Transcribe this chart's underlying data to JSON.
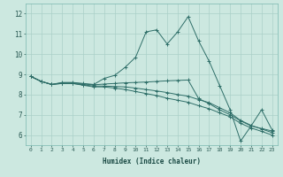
{
  "xlabel": "Humidex (Indice chaleur)",
  "background_color": "#cce8e0",
  "grid_color": "#aad0c8",
  "line_color": "#2e6e68",
  "xlim": [
    -0.5,
    23.5
  ],
  "ylim": [
    5.5,
    12.5
  ],
  "xticks": [
    0,
    1,
    2,
    3,
    4,
    5,
    6,
    7,
    8,
    9,
    10,
    11,
    12,
    13,
    14,
    15,
    16,
    17,
    18,
    19,
    20,
    21,
    22,
    23
  ],
  "yticks": [
    6,
    7,
    8,
    9,
    10,
    11,
    12
  ],
  "line1_x": [
    0,
    1,
    2,
    3,
    4,
    5,
    6,
    7,
    8,
    9,
    10,
    11,
    12,
    13,
    14,
    15,
    16,
    17,
    18,
    19,
    20,
    21,
    22,
    23
  ],
  "line1_y": [
    8.9,
    8.65,
    8.5,
    8.6,
    8.6,
    8.55,
    8.5,
    8.8,
    8.95,
    9.35,
    9.85,
    11.1,
    11.2,
    10.5,
    11.1,
    11.85,
    10.65,
    9.65,
    8.45,
    7.25,
    5.7,
    6.45,
    7.25,
    6.25
  ],
  "line2_x": [
    0,
    1,
    2,
    3,
    4,
    5,
    6,
    7,
    8,
    9,
    10,
    11,
    12,
    13,
    14,
    15,
    16,
    17,
    18,
    19,
    20,
    21,
    22,
    23
  ],
  "line2_y": [
    8.9,
    8.65,
    8.5,
    8.58,
    8.58,
    8.52,
    8.48,
    8.52,
    8.55,
    8.58,
    8.6,
    8.62,
    8.65,
    8.68,
    8.7,
    8.72,
    7.8,
    7.55,
    7.25,
    7.0,
    6.7,
    6.45,
    6.32,
    6.2
  ],
  "line3_x": [
    0,
    1,
    2,
    3,
    4,
    5,
    6,
    7,
    8,
    9,
    10,
    11,
    12,
    13,
    14,
    15,
    16,
    17,
    18,
    19,
    20,
    21,
    22,
    23
  ],
  "line3_y": [
    8.9,
    8.65,
    8.5,
    8.55,
    8.55,
    8.48,
    8.42,
    8.42,
    8.4,
    8.38,
    8.32,
    8.25,
    8.18,
    8.1,
    8.0,
    7.92,
    7.75,
    7.6,
    7.35,
    7.1,
    6.72,
    6.48,
    6.3,
    6.12
  ],
  "line4_x": [
    0,
    1,
    2,
    3,
    4,
    5,
    6,
    7,
    8,
    9,
    10,
    11,
    12,
    13,
    14,
    15,
    16,
    17,
    18,
    19,
    20,
    21,
    22,
    23
  ],
  "line4_y": [
    8.9,
    8.65,
    8.5,
    8.55,
    8.55,
    8.46,
    8.38,
    8.38,
    8.32,
    8.25,
    8.15,
    8.05,
    7.95,
    7.82,
    7.72,
    7.62,
    7.45,
    7.3,
    7.1,
    6.9,
    6.58,
    6.35,
    6.18,
    6.0
  ]
}
